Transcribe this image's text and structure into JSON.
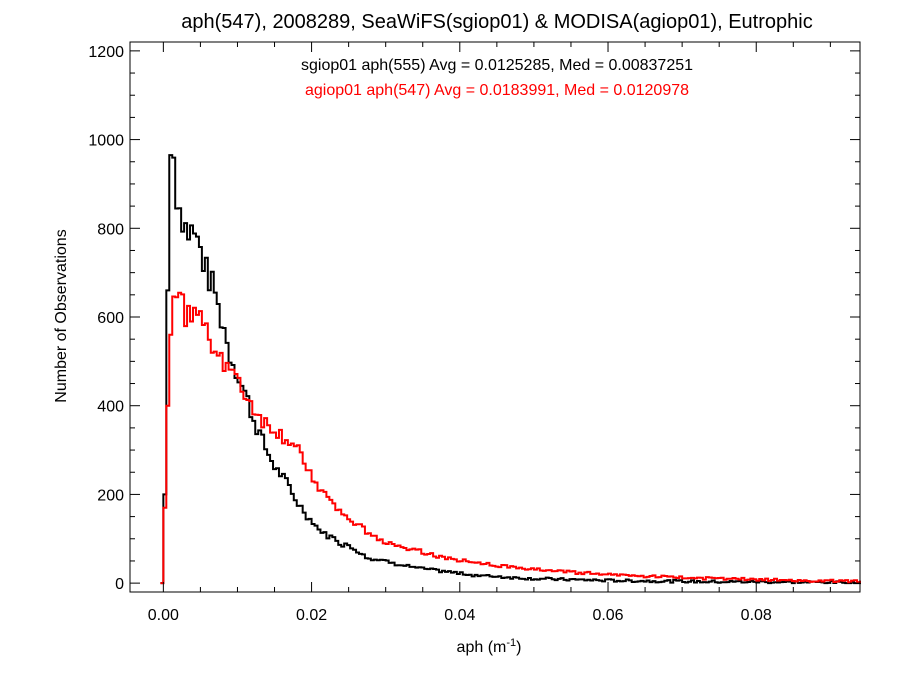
{
  "chart_data": {
    "type": "line",
    "title": "aph(547), 2008289, SeaWiFS(sgiop01) & MODISA(agiop01), Eutrophic",
    "xlabel": "aph (m",
    "xlabel_sup": "-1",
    "xlabel_close": ")",
    "ylabel": "Number of Observations",
    "xlim": [
      -0.0045,
      0.094
    ],
    "ylim": [
      -20,
      1220
    ],
    "xticks": [
      0.0,
      0.02,
      0.04,
      0.06,
      0.08
    ],
    "xtick_labels": [
      "0.00",
      "0.02",
      "0.04",
      "0.06",
      "0.08"
    ],
    "yticks": [
      0,
      200,
      400,
      600,
      800,
      1000,
      1200
    ],
    "ytick_labels": [
      "0",
      "200",
      "400",
      "600",
      "800",
      "1000",
      "1200"
    ],
    "grid": false,
    "legend_position": "top-center",
    "series": [
      {
        "name": "sgiop01 aph(555) Avg = 0.0125285, Med = 0.00837251",
        "color": "#000000",
        "x": [
          0.0,
          0.0002,
          0.0006,
          0.001,
          0.0014,
          0.0018,
          0.0022,
          0.0026,
          0.003,
          0.0034,
          0.004,
          0.0046,
          0.0052,
          0.0058,
          0.0064,
          0.007,
          0.0076,
          0.0082,
          0.0088,
          0.0094,
          0.01,
          0.0108,
          0.0116,
          0.0124,
          0.0132,
          0.014,
          0.015,
          0.016,
          0.017,
          0.018,
          0.019,
          0.02,
          0.021,
          0.022,
          0.023,
          0.024,
          0.025,
          0.026,
          0.027,
          0.028,
          0.03,
          0.032,
          0.034,
          0.036,
          0.038,
          0.04,
          0.042,
          0.044,
          0.046,
          0.048,
          0.05,
          0.055,
          0.06,
          0.065,
          0.07,
          0.075,
          0.08,
          0.085,
          0.09,
          0.0935
        ],
        "y": [
          0,
          200,
          660,
          965,
          960,
          880,
          850,
          825,
          805,
          790,
          800,
          770,
          745,
          700,
          680,
          660,
          600,
          580,
          520,
          500,
          470,
          440,
          400,
          360,
          330,
          295,
          265,
          240,
          215,
          185,
          160,
          140,
          120,
          110,
          100,
          90,
          85,
          75,
          65,
          55,
          50,
          42,
          35,
          30,
          26,
          22,
          18,
          16,
          14,
          12,
          10,
          8,
          6,
          5,
          4,
          3,
          3,
          2,
          2,
          1
        ]
      },
      {
        "name": "agiop01 aph(547) Avg = 0.0183991, Med = 0.0120978",
        "color": "#ff0000",
        "x": [
          0.0,
          0.0002,
          0.0006,
          0.001,
          0.0014,
          0.0018,
          0.0022,
          0.0026,
          0.003,
          0.0034,
          0.004,
          0.0046,
          0.0052,
          0.0058,
          0.0064,
          0.007,
          0.0076,
          0.0082,
          0.0088,
          0.0094,
          0.01,
          0.0108,
          0.0116,
          0.0124,
          0.0132,
          0.014,
          0.015,
          0.016,
          0.017,
          0.018,
          0.019,
          0.02,
          0.021,
          0.022,
          0.023,
          0.024,
          0.025,
          0.026,
          0.027,
          0.028,
          0.03,
          0.032,
          0.034,
          0.036,
          0.038,
          0.04,
          0.042,
          0.044,
          0.046,
          0.048,
          0.05,
          0.055,
          0.06,
          0.065,
          0.07,
          0.075,
          0.08,
          0.085,
          0.09,
          0.0935
        ],
        "y": [
          0,
          170,
          400,
          560,
          680,
          650,
          640,
          625,
          610,
          600,
          620,
          610,
          590,
          570,
          550,
          540,
          520,
          500,
          490,
          470,
          450,
          430,
          410,
          390,
          370,
          355,
          345,
          335,
          320,
          300,
          270,
          245,
          215,
          195,
          175,
          160,
          145,
          130,
          120,
          110,
          95,
          85,
          75,
          65,
          58,
          52,
          46,
          42,
          38,
          34,
          30,
          25,
          20,
          16,
          13,
          10,
          8,
          6,
          5,
          4
        ]
      }
    ]
  }
}
